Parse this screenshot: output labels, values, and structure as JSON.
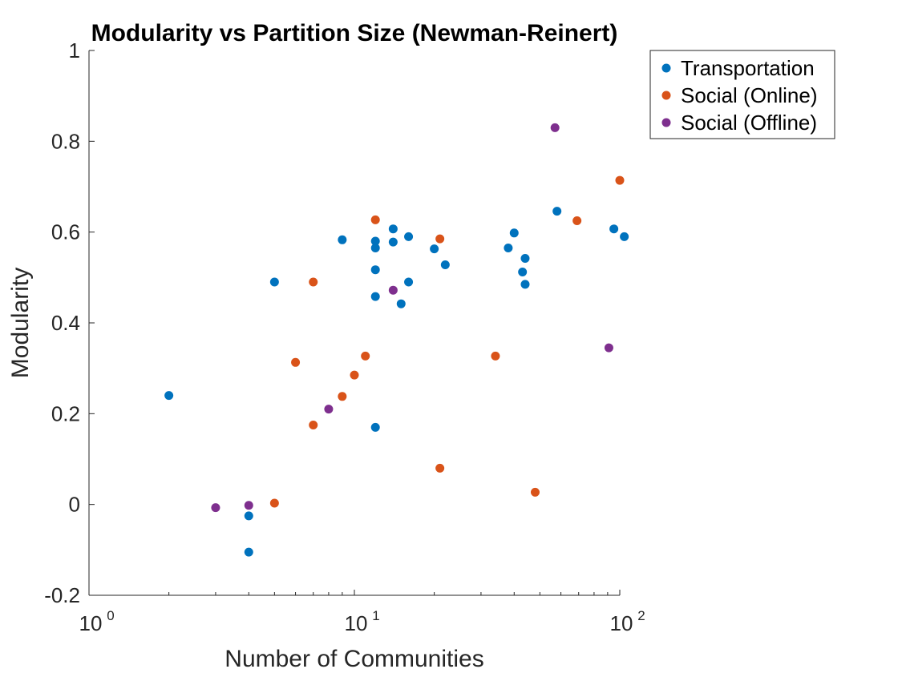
{
  "chart_data": {
    "type": "scatter",
    "title": "Modularity vs Partition Size (Newman-Reinert)",
    "xlabel": "Number of Communities",
    "ylabel": "Modularity",
    "xscale": "log",
    "xlim": [
      1,
      100
    ],
    "ylim": [
      -0.2,
      1
    ],
    "xticks": [
      {
        "base": "10",
        "exp": "0"
      },
      {
        "base": "10",
        "exp": "1"
      },
      {
        "base": "10",
        "exp": "2"
      }
    ],
    "yticks": [
      "-0.2",
      "0",
      "0.2",
      "0.4",
      "0.6",
      "0.8",
      "1"
    ],
    "grid": false,
    "legend_position": "outside top-right",
    "series": [
      {
        "name": "Transportation",
        "color": "#0072BD",
        "points": [
          [
            2,
            0.24
          ],
          [
            4,
            -0.025
          ],
          [
            4,
            -0.105
          ],
          [
            5,
            0.49
          ],
          [
            9,
            0.583
          ],
          [
            12,
            0.58
          ],
          [
            12,
            0.565
          ],
          [
            12,
            0.517
          ],
          [
            12,
            0.458
          ],
          [
            12,
            0.17
          ],
          [
            14,
            0.607
          ],
          [
            14,
            0.578
          ],
          [
            15,
            0.442
          ],
          [
            16,
            0.59
          ],
          [
            16,
            0.49
          ],
          [
            20,
            0.563
          ],
          [
            22,
            0.528
          ],
          [
            38,
            0.565
          ],
          [
            40,
            0.598
          ],
          [
            43,
            0.512
          ],
          [
            44,
            0.542
          ],
          [
            44,
            0.485
          ],
          [
            58,
            0.646
          ],
          [
            95,
            0.607
          ],
          [
            104,
            0.59
          ]
        ]
      },
      {
        "name": "Social (Online)",
        "color": "#D95319",
        "points": [
          [
            5,
            0.003
          ],
          [
            6,
            0.313
          ],
          [
            7,
            0.49
          ],
          [
            7,
            0.175
          ],
          [
            9,
            0.238
          ],
          [
            10,
            0.285
          ],
          [
            11,
            0.327
          ],
          [
            12,
            0.627
          ],
          [
            21,
            0.585
          ],
          [
            21,
            0.08
          ],
          [
            34,
            0.327
          ],
          [
            48,
            0.027
          ],
          [
            69,
            0.625
          ],
          [
            100,
            0.714
          ]
        ]
      },
      {
        "name": "Social (Offline)",
        "color": "#7E2F8E",
        "points": [
          [
            3,
            -0.007
          ],
          [
            4,
            -0.002
          ],
          [
            8,
            0.21
          ],
          [
            14,
            0.472
          ],
          [
            57,
            0.83
          ],
          [
            91,
            0.345
          ]
        ]
      }
    ]
  }
}
